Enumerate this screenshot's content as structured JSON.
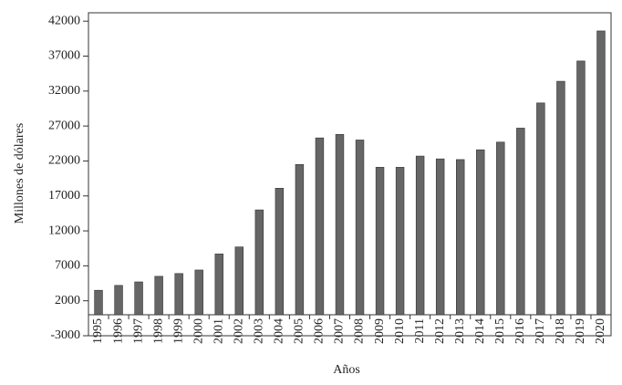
{
  "chart_data": {
    "type": "bar",
    "x_label": "Años",
    "y_label": "Millones de dólares",
    "categories": [
      "1995",
      "1996",
      "1997",
      "1998",
      "1999",
      "2000",
      "2001",
      "2002",
      "2003",
      "2004",
      "2005",
      "2006",
      "2007",
      "2008",
      "2009",
      "2010",
      "2011",
      "2012",
      "2013",
      "2014",
      "2015",
      "2016",
      "2017",
      "2018",
      "2019",
      "2020"
    ],
    "values": [
      3500,
      4200,
      4700,
      5500,
      5900,
      6400,
      8700,
      9700,
      15000,
      18100,
      21500,
      25300,
      25800,
      25000,
      21100,
      21100,
      22700,
      22300,
      22200,
      23600,
      24700,
      26700,
      30300,
      33400,
      36300,
      40600
    ],
    "color": "#666666",
    "ylim": [
      -3000,
      43200
    ],
    "yticks": [
      -3000,
      2000,
      7000,
      12000,
      17000,
      22000,
      27000,
      32000,
      37000,
      42000
    ]
  }
}
